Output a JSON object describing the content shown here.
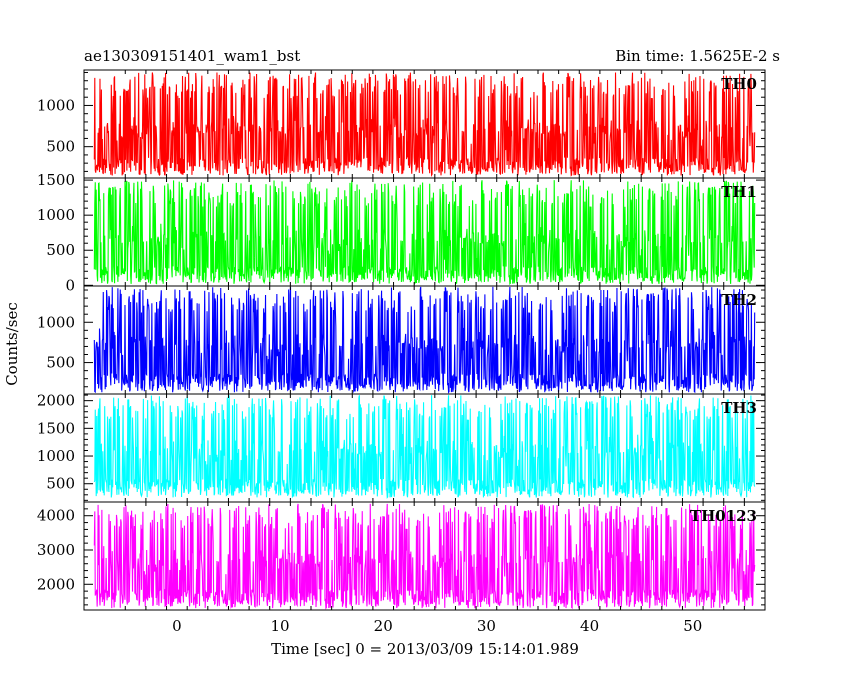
{
  "chart_data": {
    "type": "line",
    "title_left": "ae130309151401_wam1_bst",
    "title_right": "Bin time: 1.5625E-2 s",
    "xlabel": "Time [sec] 0 = 2013/03/09 15:14:01.989",
    "ylabel": "Counts/sec",
    "xlim": [
      -9,
      57
    ],
    "x_ticks": [
      0,
      10,
      20,
      30,
      40,
      50
    ],
    "x_tick_labels": [
      "0",
      "10",
      "20",
      "30",
      "40",
      "50"
    ],
    "data_x_range": [
      -8,
      56
    ],
    "grid": false,
    "panels": [
      {
        "name": "TH0",
        "color": "#ff0000",
        "ylim": [
          120,
          1430
        ],
        "y_ticks": [
          500,
          1000
        ],
        "y_tick_labels": [
          "500",
          "1000"
        ],
        "mean": 700,
        "low": 150,
        "high": 1400
      },
      {
        "name": "TH1",
        "color": "#00ff00",
        "ylim": [
          -10,
          1530
        ],
        "y_ticks": [
          0,
          500,
          1000,
          1500
        ],
        "y_tick_labels": [
          "0",
          "500",
          "1000",
          "1500"
        ],
        "mean": 650,
        "low": 20,
        "high": 1500
      },
      {
        "name": "TH2",
        "color": "#0000ff",
        "ylim": [
          110,
          1450
        ],
        "y_ticks": [
          500,
          1000
        ],
        "y_tick_labels": [
          "500",
          "1000"
        ],
        "mean": 720,
        "low": 130,
        "high": 1440
      },
      {
        "name": "TH3",
        "color": "#00ffff",
        "ylim": [
          170,
          2120
        ],
        "y_ticks": [
          500,
          1000,
          1500,
          2000
        ],
        "y_tick_labels": [
          "500",
          "1000",
          "1500",
          "2000"
        ],
        "mean": 1100,
        "low": 250,
        "high": 2100
      },
      {
        "name": "TH0123",
        "color": "#ff00ff",
        "ylim": [
          1250,
          4400
        ],
        "y_ticks": [
          2000,
          3000,
          4000
        ],
        "y_tick_labels": [
          "2000",
          "3000",
          "4000"
        ],
        "mean": 2700,
        "low": 1300,
        "high": 4350
      }
    ]
  }
}
